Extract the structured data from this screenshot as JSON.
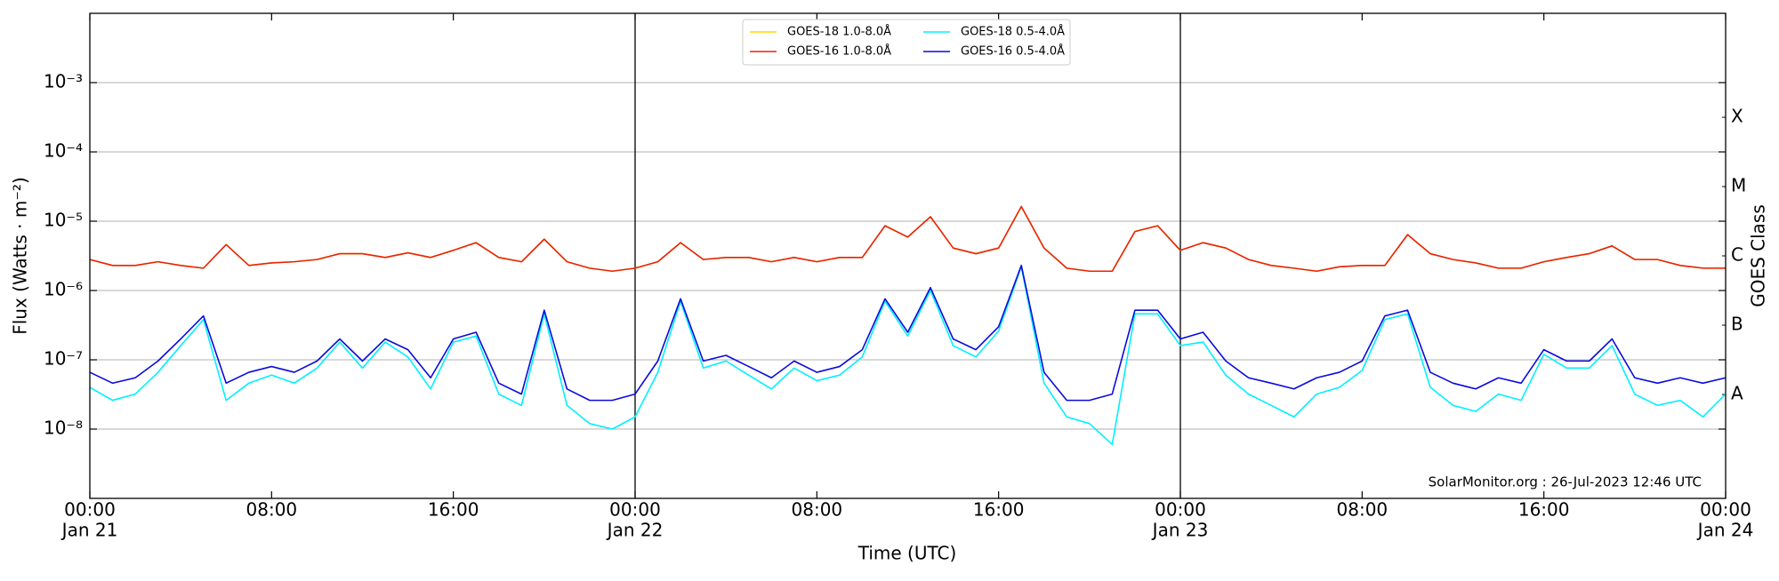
{
  "chart_data": {
    "type": "line",
    "xlabel": "Time (UTC)",
    "ylabel": "Flux (Watts · m⁻²)",
    "y2label": "GOES Class",
    "annotation": "SolarMonitor.org : 26-Jul-2023 12:46 UTC",
    "yscale": "log",
    "grid": true,
    "legend": "upper center",
    "x": [
      0,
      1,
      2,
      3,
      4,
      5,
      6,
      7,
      8,
      9,
      10,
      11,
      12,
      13,
      14,
      15,
      16,
      17,
      18,
      19,
      20,
      21,
      22,
      23,
      24,
      25,
      26,
      27,
      28,
      29,
      30,
      31,
      32,
      33,
      34,
      35,
      36,
      37,
      38,
      39,
      40,
      41,
      42,
      43,
      44,
      45,
      46,
      47,
      48,
      49,
      50,
      51,
      52,
      53,
      54,
      55,
      56,
      57,
      58,
      59,
      60,
      61,
      62,
      63,
      64,
      65,
      66,
      67,
      68,
      69,
      70,
      71,
      72
    ],
    "xlim": [
      0,
      72
    ],
    "xticks": [
      {
        "value": 0,
        "label": "00:00",
        "date": "Jan 21"
      },
      {
        "value": 8,
        "label": "08:00"
      },
      {
        "value": 16,
        "label": "16:00"
      },
      {
        "value": 24,
        "label": "00:00",
        "date": "Jan 22"
      },
      {
        "value": 32,
        "label": "08:00"
      },
      {
        "value": 40,
        "label": "16:00"
      },
      {
        "value": 48,
        "label": "00:00",
        "date": "Jan 23"
      },
      {
        "value": 56,
        "label": "08:00"
      },
      {
        "value": 64,
        "label": "16:00"
      },
      {
        "value": 72,
        "label": "00:00",
        "date": "Jan 24"
      }
    ],
    "vlines": [
      24,
      48
    ],
    "ylim": [
      1e-09,
      0.01
    ],
    "yticks": [
      {
        "value": 1e-08,
        "label": "10⁻⁸"
      },
      {
        "value": 1e-07,
        "label": "10⁻⁷"
      },
      {
        "value": 1e-06,
        "label": "10⁻⁶"
      },
      {
        "value": 1e-05,
        "label": "10⁻⁵"
      },
      {
        "value": 0.0001,
        "label": "10⁻⁴"
      },
      {
        "value": 0.001,
        "label": "10⁻³"
      }
    ],
    "y2lim": [
      1e-09,
      0.01
    ],
    "y2ticks": [
      {
        "value": 3.16e-08,
        "label": "A"
      },
      {
        "value": 3.16e-07,
        "label": "B"
      },
      {
        "value": 3.16e-06,
        "label": "C"
      },
      {
        "value": 3.16e-05,
        "label": "M"
      },
      {
        "value": 0.000316,
        "label": "X"
      }
    ],
    "series": [
      {
        "name": "GOES-18 1.0-8.0Å",
        "color": "#ffd700",
        "values": [
          2.8e-06,
          2.3e-06,
          2.3e-06,
          2.6e-06,
          2.3e-06,
          2.1e-06,
          4.6e-06,
          2.3e-06,
          2.5e-06,
          2.6e-06,
          2.8e-06,
          3.4e-06,
          3.4e-06,
          3e-06,
          3.5e-06,
          3e-06,
          3.8e-06,
          4.9e-06,
          3e-06,
          2.6e-06,
          5.5e-06,
          2.6e-06,
          2.1e-06,
          1.9e-06,
          2.1e-06,
          2.6e-06,
          4.9e-06,
          2.8e-06,
          3e-06,
          3e-06,
          2.6e-06,
          3e-06,
          2.6e-06,
          3e-06,
          3e-06,
          8.6e-06,
          5.9e-06,
          1.16e-05,
          4.1e-06,
          3.4e-06,
          4.1e-06,
          1.63e-05,
          4.1e-06,
          2.1e-06,
          1.9e-06,
          1.9e-06,
          7.1e-06,
          8.6e-06,
          3.8e-06,
          4.9e-06,
          4.1e-06,
          2.8e-06,
          2.3e-06,
          2.1e-06,
          1.9e-06,
          2.2e-06,
          2.3e-06,
          2.3e-06,
          6.4e-06,
          3.4e-06,
          2.8e-06,
          2.5e-06,
          2.1e-06,
          2.1e-06,
          2.6e-06,
          3e-06,
          3.4e-06,
          4.4e-06,
          2.8e-06,
          2.8e-06,
          2.3e-06,
          2.1e-06,
          2.1e-06
        ]
      },
      {
        "name": "GOES-16 1.0-8.0Å",
        "color": "#e8220a",
        "values": [
          2.8e-06,
          2.3e-06,
          2.3e-06,
          2.6e-06,
          2.3e-06,
          2.1e-06,
          4.6e-06,
          2.3e-06,
          2.5e-06,
          2.6e-06,
          2.8e-06,
          3.4e-06,
          3.4e-06,
          3e-06,
          3.5e-06,
          3e-06,
          3.8e-06,
          4.9e-06,
          3e-06,
          2.6e-06,
          5.5e-06,
          2.6e-06,
          2.1e-06,
          1.9e-06,
          2.1e-06,
          2.6e-06,
          4.9e-06,
          2.8e-06,
          3e-06,
          3e-06,
          2.6e-06,
          3e-06,
          2.6e-06,
          3e-06,
          3e-06,
          8.6e-06,
          5.9e-06,
          1.16e-05,
          4.1e-06,
          3.4e-06,
          4.1e-06,
          1.63e-05,
          4.1e-06,
          2.1e-06,
          1.9e-06,
          1.9e-06,
          7.1e-06,
          8.6e-06,
          3.8e-06,
          4.9e-06,
          4.1e-06,
          2.8e-06,
          2.3e-06,
          2.1e-06,
          1.9e-06,
          2.2e-06,
          2.3e-06,
          2.3e-06,
          6.4e-06,
          3.4e-06,
          2.8e-06,
          2.5e-06,
          2.1e-06,
          2.1e-06,
          2.6e-06,
          3e-06,
          3.4e-06,
          4.4e-06,
          2.8e-06,
          2.8e-06,
          2.3e-06,
          2.1e-06,
          2.1e-06
        ]
      },
      {
        "name": "GOES-18 0.5-4.0Å",
        "color": "#00f0ff",
        "values": [
          4e-08,
          2.6e-08,
          3.2e-08,
          6.6e-08,
          1.6e-07,
          3.8e-07,
          2.6e-08,
          4.6e-08,
          6e-08,
          4.6e-08,
          7.6e-08,
          1.8e-07,
          7.6e-08,
          1.8e-07,
          1.1e-07,
          3.8e-08,
          1.8e-07,
          2.2e-07,
          3.2e-08,
          2.2e-08,
          4.6e-07,
          2.2e-08,
          1.2e-08,
          1e-08,
          1.5e-08,
          6.6e-08,
          7e-07,
          7.6e-08,
          9.6e-08,
          6e-08,
          3.8e-08,
          7.6e-08,
          5e-08,
          6e-08,
          1.1e-07,
          7e-07,
          2.2e-07,
          1e-06,
          1.6e-07,
          1.1e-07,
          2.6e-07,
          2.2e-06,
          4.6e-08,
          1.5e-08,
          1.2e-08,
          6e-09,
          4.6e-07,
          4.6e-07,
          1.6e-07,
          1.8e-07,
          6e-08,
          3.2e-08,
          2.2e-08,
          1.5e-08,
          3.2e-08,
          4e-08,
          7e-08,
          3.8e-07,
          4.6e-07,
          4e-08,
          2.2e-08,
          1.8e-08,
          3.2e-08,
          2.6e-08,
          1.2e-07,
          7.6e-08,
          7.6e-08,
          1.6e-07,
          3.2e-08,
          2.2e-08,
          2.6e-08,
          1.5e-08,
          3.2e-08
        ]
      },
      {
        "name": "GOES-16 0.5-4.0Å",
        "color": "#0a0adc",
        "values": [
          6.6e-08,
          4.6e-08,
          5.5e-08,
          9.6e-08,
          2e-07,
          4.3e-07,
          4.6e-08,
          6.6e-08,
          8e-08,
          6.6e-08,
          9.6e-08,
          2e-07,
          9.6e-08,
          2e-07,
          1.4e-07,
          5.5e-08,
          2e-07,
          2.5e-07,
          4.6e-08,
          3.2e-08,
          5.2e-07,
          3.8e-08,
          2.6e-08,
          2.6e-08,
          3.2e-08,
          9.6e-08,
          7.6e-07,
          9.6e-08,
          1.16e-07,
          8e-08,
          5.5e-08,
          9.6e-08,
          6.6e-08,
          8e-08,
          1.4e-07,
          7.6e-07,
          2.5e-07,
          1.1e-06,
          2e-07,
          1.4e-07,
          3e-07,
          2.3e-06,
          6.6e-08,
          2.6e-08,
          2.6e-08,
          3.2e-08,
          5.2e-07,
          5.2e-07,
          2e-07,
          2.5e-07,
          9.6e-08,
          5.5e-08,
          4.6e-08,
          3.8e-08,
          5.5e-08,
          6.6e-08,
          9.6e-08,
          4.3e-07,
          5.2e-07,
          6.6e-08,
          4.6e-08,
          3.8e-08,
          5.5e-08,
          4.6e-08,
          1.4e-07,
          9.6e-08,
          9.6e-08,
          2e-07,
          5.5e-08,
          4.6e-08,
          5.5e-08,
          4.6e-08,
          5.5e-08
        ]
      }
    ]
  }
}
